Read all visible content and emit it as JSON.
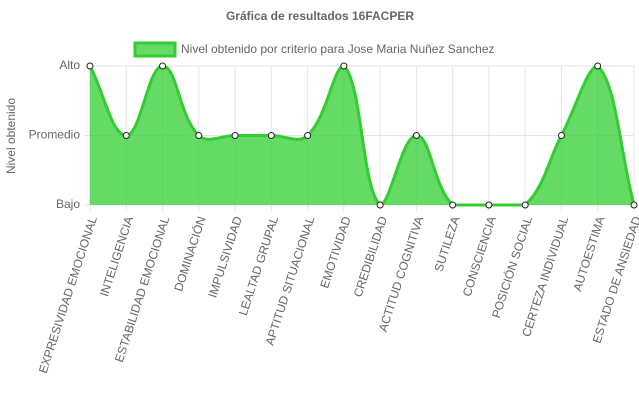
{
  "chart_data": {
    "type": "line",
    "title": "Gráfica de resultados 16FACPER",
    "y_label": "Nivel obtenido",
    "categories": [
      "EXPRESIVIDAD EMOCIONAL",
      "INTELIGENCIA",
      "ESTABILIDAD EMOCIONAL",
      "DOMINACIÓN",
      "IMPULSIVIDAD",
      "LEALTAD GRUPAL",
      "APTITUD SITUACIONAL",
      "EMOTIVIDAD",
      "CREDIBILIDAD",
      "ACTITUD COGNITIVA",
      "SUTILEZA",
      "CONSCIENCIA",
      "POSICIÓN SOCIAL",
      "CERTEZA INDIVIDUAL",
      "AUTOESTIMA",
      "ESTADO DE ANSIEDAD"
    ],
    "series": [
      {
        "name": "Nivel obtenido por criterio para Jose Maria Nuñez Sanchez",
        "color": "#32cd32",
        "values": [
          3,
          2,
          3,
          2,
          2,
          2,
          2,
          3,
          1,
          2,
          1,
          1,
          1,
          2,
          3,
          1
        ]
      }
    ],
    "ylim": [
      1,
      3
    ],
    "yticks": [
      {
        "value": 1,
        "label": "Bajo"
      },
      {
        "value": 2,
        "label": "Promedio"
      },
      {
        "value": 3,
        "label": "Alto"
      }
    ],
    "grid": true,
    "fill": true,
    "smooth": true,
    "legend": "top"
  }
}
